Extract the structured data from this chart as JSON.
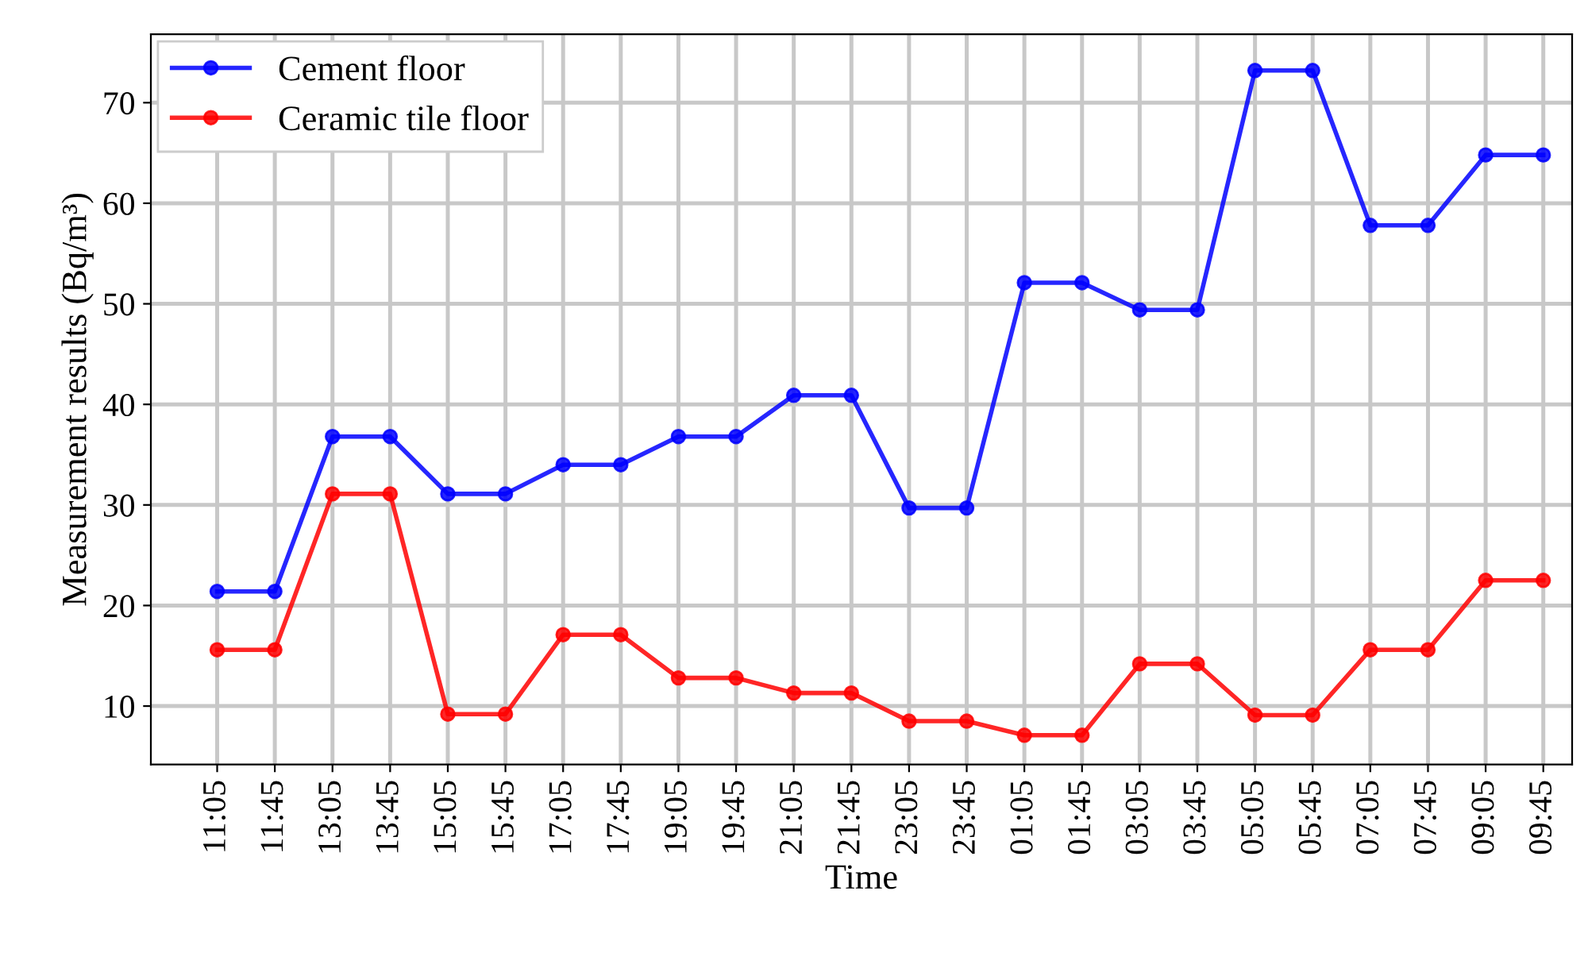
{
  "chart_data": {
    "type": "line",
    "xlabel": "Time",
    "ylabel": "Measurement results (Bq/m³)",
    "categories": [
      "11:05",
      "11:45",
      "13:05",
      "13:45",
      "15:05",
      "15:45",
      "17:05",
      "17:45",
      "19:05",
      "19:45",
      "21:05",
      "21:45",
      "23:05",
      "23:45",
      "01:05",
      "01:45",
      "03:05",
      "03:45",
      "05:05",
      "05:45",
      "07:05",
      "07:45",
      "09:05",
      "09:45"
    ],
    "series": [
      {
        "name": "Cement floor",
        "color": "#0000ff",
        "values": [
          21.4,
          21.4,
          36.8,
          36.8,
          31.1,
          31.1,
          34.0,
          34.0,
          36.8,
          36.8,
          40.9,
          40.9,
          29.7,
          29.7,
          52.1,
          52.1,
          49.4,
          49.4,
          73.2,
          73.2,
          57.8,
          57.8,
          64.8,
          64.8
        ]
      },
      {
        "name": "Ceramic tile floor",
        "color": "#ff0000",
        "values": [
          15.6,
          15.6,
          31.1,
          31.1,
          9.2,
          9.2,
          17.1,
          17.1,
          12.8,
          12.8,
          11.3,
          11.3,
          8.5,
          8.5,
          7.1,
          7.1,
          14.2,
          14.2,
          9.1,
          9.1,
          15.6,
          15.6,
          22.5,
          22.5
        ]
      }
    ],
    "ylim": [
      4.2,
      76.8
    ],
    "yticks": [
      10,
      20,
      30,
      40,
      50,
      60,
      70
    ],
    "grid": true,
    "legend": "top left",
    "marker": "circle",
    "line_style": "solid"
  }
}
